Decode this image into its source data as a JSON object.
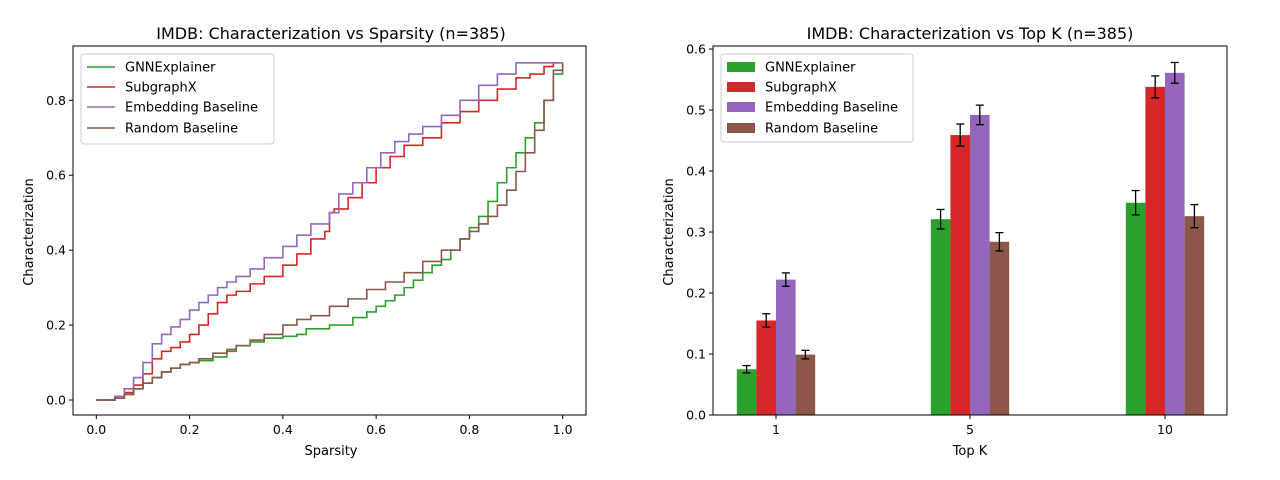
{
  "chart_data": [
    {
      "type": "line",
      "title": "IMDB: Characterization vs Sparsity (n=385)",
      "xlabel": "Sparsity",
      "ylabel": "Characterization",
      "xlim": [
        -0.05,
        1.05
      ],
      "ylim": [
        -0.04,
        0.945
      ],
      "xticks": [
        0.0,
        0.2,
        0.4,
        0.6,
        0.8,
        1.0
      ],
      "xtick_labels": [
        "0.0",
        "0.2",
        "0.4",
        "0.6",
        "0.8",
        "1.0"
      ],
      "yticks": [
        0.0,
        0.2,
        0.4,
        0.6,
        0.8
      ],
      "ytick_labels": [
        "0.0",
        "0.2",
        "0.4",
        "0.6",
        "0.8"
      ],
      "legend": "top-left",
      "grid": false,
      "series": [
        {
          "name": "GNNExplainer",
          "color": "#2ca02c",
          "x": [
            0.0,
            0.02,
            0.04,
            0.06,
            0.08,
            0.1,
            0.12,
            0.14,
            0.16,
            0.18,
            0.2,
            0.22,
            0.25,
            0.28,
            0.3,
            0.33,
            0.36,
            0.4,
            0.43,
            0.45,
            0.5,
            0.55,
            0.58,
            0.6,
            0.62,
            0.64,
            0.66,
            0.68,
            0.7,
            0.72,
            0.74,
            0.76,
            0.78,
            0.8,
            0.82,
            0.84,
            0.86,
            0.88,
            0.9,
            0.92,
            0.94,
            0.96,
            0.98,
            1.0
          ],
          "y": [
            0.0,
            0.0,
            0.005,
            0.015,
            0.03,
            0.045,
            0.06,
            0.075,
            0.085,
            0.095,
            0.1,
            0.105,
            0.115,
            0.13,
            0.145,
            0.155,
            0.165,
            0.17,
            0.175,
            0.19,
            0.2,
            0.22,
            0.235,
            0.25,
            0.265,
            0.28,
            0.3,
            0.32,
            0.34,
            0.36,
            0.375,
            0.4,
            0.43,
            0.46,
            0.49,
            0.53,
            0.58,
            0.62,
            0.66,
            0.7,
            0.74,
            0.8,
            0.87,
            0.9
          ]
        },
        {
          "name": "SubgraphX",
          "color": "#d62728",
          "x": [
            0.0,
            0.02,
            0.04,
            0.06,
            0.08,
            0.1,
            0.12,
            0.14,
            0.16,
            0.18,
            0.2,
            0.22,
            0.24,
            0.26,
            0.28,
            0.3,
            0.33,
            0.36,
            0.4,
            0.43,
            0.46,
            0.49,
            0.5,
            0.51,
            0.54,
            0.57,
            0.6,
            0.63,
            0.66,
            0.7,
            0.74,
            0.78,
            0.82,
            0.86,
            0.9,
            0.93,
            0.96,
            0.98,
            1.0
          ],
          "y": [
            0.0,
            0.0,
            0.01,
            0.02,
            0.04,
            0.07,
            0.11,
            0.13,
            0.14,
            0.155,
            0.175,
            0.2,
            0.23,
            0.26,
            0.28,
            0.29,
            0.31,
            0.33,
            0.36,
            0.39,
            0.43,
            0.45,
            0.5,
            0.51,
            0.54,
            0.58,
            0.62,
            0.65,
            0.68,
            0.7,
            0.74,
            0.77,
            0.8,
            0.83,
            0.86,
            0.87,
            0.89,
            0.9,
            0.9
          ]
        },
        {
          "name": "Embedding Baseline",
          "color": "#9467bd",
          "x": [
            0.0,
            0.02,
            0.04,
            0.06,
            0.08,
            0.1,
            0.12,
            0.14,
            0.16,
            0.18,
            0.2,
            0.22,
            0.24,
            0.26,
            0.28,
            0.3,
            0.33,
            0.36,
            0.4,
            0.43,
            0.46,
            0.5,
            0.52,
            0.55,
            0.58,
            0.61,
            0.64,
            0.67,
            0.7,
            0.74,
            0.78,
            0.82,
            0.86,
            0.9,
            0.93,
            0.96,
            0.98,
            1.0
          ],
          "y": [
            0.0,
            0.0,
            0.01,
            0.03,
            0.06,
            0.1,
            0.15,
            0.175,
            0.195,
            0.215,
            0.24,
            0.26,
            0.28,
            0.3,
            0.315,
            0.33,
            0.35,
            0.38,
            0.41,
            0.44,
            0.47,
            0.5,
            0.55,
            0.58,
            0.62,
            0.66,
            0.69,
            0.71,
            0.73,
            0.76,
            0.8,
            0.84,
            0.87,
            0.9,
            0.9,
            0.9,
            0.9,
            0.9
          ]
        },
        {
          "name": "Random Baseline",
          "color": "#8c564b",
          "x": [
            0.0,
            0.02,
            0.04,
            0.06,
            0.08,
            0.1,
            0.12,
            0.14,
            0.16,
            0.18,
            0.2,
            0.22,
            0.25,
            0.28,
            0.3,
            0.33,
            0.36,
            0.4,
            0.43,
            0.46,
            0.5,
            0.54,
            0.58,
            0.62,
            0.66,
            0.7,
            0.74,
            0.78,
            0.8,
            0.82,
            0.84,
            0.86,
            0.88,
            0.9,
            0.92,
            0.94,
            0.96,
            0.98,
            1.0
          ],
          "y": [
            0.0,
            0.0,
            0.005,
            0.015,
            0.03,
            0.045,
            0.06,
            0.075,
            0.085,
            0.095,
            0.1,
            0.11,
            0.125,
            0.135,
            0.145,
            0.16,
            0.175,
            0.2,
            0.215,
            0.225,
            0.25,
            0.27,
            0.295,
            0.315,
            0.34,
            0.37,
            0.4,
            0.43,
            0.45,
            0.47,
            0.49,
            0.52,
            0.56,
            0.61,
            0.66,
            0.72,
            0.8,
            0.88,
            0.9
          ]
        }
      ]
    },
    {
      "type": "bar",
      "title": "IMDB: Characterization vs Top K (n=385)",
      "xlabel": "Top K",
      "ylabel": "Characterization",
      "categories": [
        "1",
        "5",
        "10"
      ],
      "ylim": [
        0.0,
        0.605
      ],
      "yticks": [
        0.0,
        0.1,
        0.2,
        0.3,
        0.4,
        0.5,
        0.6
      ],
      "ytick_labels": [
        "0.0",
        "0.1",
        "0.2",
        "0.3",
        "0.4",
        "0.5",
        "0.6"
      ],
      "legend": "top-left",
      "grid": false,
      "series": [
        {
          "name": "GNNExplainer",
          "color": "#2ca02c",
          "values": [
            0.075,
            0.321,
            0.348
          ],
          "errors": [
            0.006,
            0.016,
            0.02
          ]
        },
        {
          "name": "SubgraphX",
          "color": "#d62728",
          "values": [
            0.155,
            0.459,
            0.538
          ],
          "errors": [
            0.011,
            0.018,
            0.018
          ]
        },
        {
          "name": "Embedding Baseline",
          "color": "#9467bd",
          "values": [
            0.222,
            0.492,
            0.561
          ],
          "errors": [
            0.011,
            0.016,
            0.017
          ]
        },
        {
          "name": "Random Baseline",
          "color": "#8c564b",
          "values": [
            0.099,
            0.284,
            0.326
          ],
          "errors": [
            0.007,
            0.015,
            0.019
          ]
        }
      ]
    }
  ]
}
